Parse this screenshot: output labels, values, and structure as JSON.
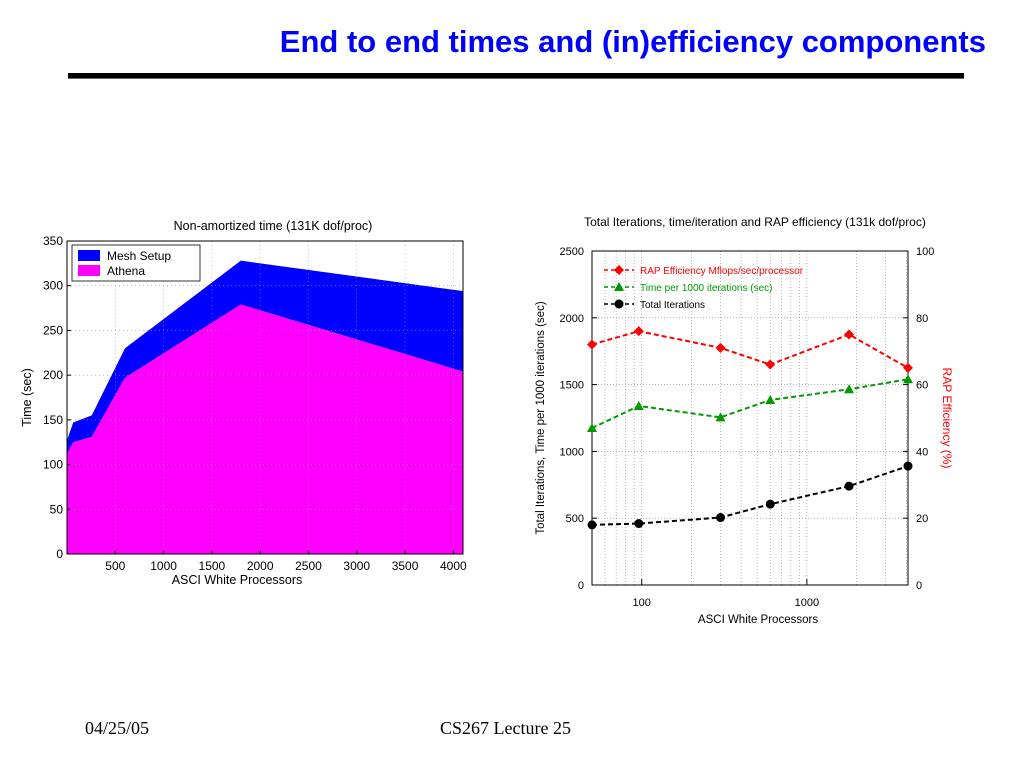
{
  "slide": {
    "title": "End to end times and (in)efficiency components",
    "footer_date": "04/25/05",
    "footer_course": "CS267 Lecture 25"
  },
  "chart_data": [
    {
      "type": "area",
      "stacked": true,
      "title": "Non-amortized time (131K dof/proc)",
      "xlabel": "ASCI White Processors",
      "ylabel": "Time (sec)",
      "xlim": [
        0,
        4100
      ],
      "ylim": [
        0,
        350
      ],
      "x_ticks": [
        500,
        1000,
        1500,
        2000,
        2500,
        3000,
        3500,
        4000
      ],
      "y_ticks": [
        0,
        50,
        100,
        150,
        200,
        250,
        300,
        350
      ],
      "grid": true,
      "legend": "top-left",
      "x": [
        0,
        64,
        256,
        600,
        1800,
        4100
      ],
      "series": [
        {
          "name": "Athena",
          "color": "#ff00ff",
          "values": [
            112,
            125,
            131,
            197,
            279,
            204
          ]
        },
        {
          "name": "Mesh Setup",
          "color": "#0000ff",
          "values": [
            15,
            22,
            24,
            33,
            49,
            90
          ]
        }
      ],
      "totals": [
        127,
        147,
        155,
        230,
        328,
        294
      ]
    },
    {
      "type": "line",
      "title": "Total Iterations, time/iteration and RAP efficiency (131k dof/proc)",
      "xlabel": "ASCI White Processors",
      "ylabel": "Total Iterations, Time per 1000 iterations (sec)",
      "y2label": "RAP Efficiency (%)",
      "x_scale": "log",
      "xlim": [
        50,
        4096
      ],
      "ylim": [
        0,
        2500
      ],
      "y2lim": [
        0,
        100
      ],
      "x_ticks": [
        100,
        1000
      ],
      "y_ticks": [
        0,
        500,
        1000,
        1500,
        2000,
        2500
      ],
      "y2_ticks": [
        0,
        20,
        40,
        60,
        80,
        100
      ],
      "grid": true,
      "legend": "top-left",
      "x": [
        50,
        96,
        300,
        600,
        1800,
        4096
      ],
      "series": [
        {
          "name": "RAP Efficiency Mflops/sec/processor",
          "axis": "right",
          "color": "#ff0000",
          "marker": "diamond",
          "values": [
            72,
            76,
            71,
            66,
            75,
            65
          ]
        },
        {
          "name": "Time per 1000 iterations (sec)",
          "axis": "left",
          "color": "#009900",
          "marker": "triangle",
          "values": [
            1175,
            1340,
            1255,
            1385,
            1465,
            1540
          ]
        },
        {
          "name": "Total Iterations",
          "axis": "left",
          "color": "#000000",
          "marker": "circle",
          "values": [
            450,
            460,
            505,
            605,
            740,
            890
          ]
        }
      ]
    }
  ]
}
